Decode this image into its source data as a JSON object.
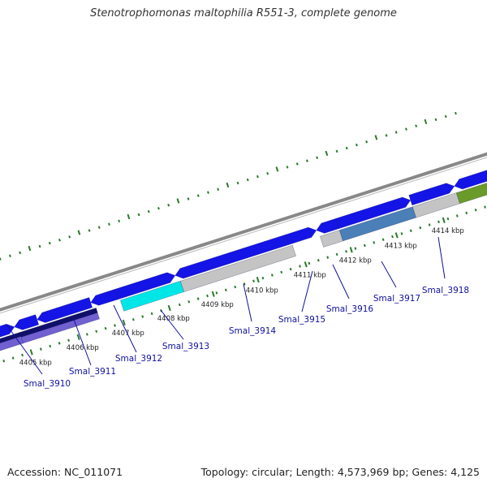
{
  "title": "Stenotrophomonas maltophilia R551-3, complete genome",
  "footer": {
    "accession": "Accession: NC_011071",
    "summary": "Topology: circular; Length: 4,573,969 bp; Genes: 4,125"
  },
  "colors": {
    "gene_forward": "#1414e6",
    "gene_highlight": "#00e6e6",
    "gene_reverse_band": "#7060d0",
    "gene_dark": "#10106a",
    "gene_gray": "#c4c4c4",
    "gene_steel": "#4a7fb8",
    "gene_olive": "#6a9a2a",
    "backbone": "#888888",
    "ticks": "#2a7a2a",
    "gene_label": "#1010a0"
  },
  "kbp_labels": [
    "4405 kbp",
    "4406 kbp",
    "4407 kbp",
    "4408 kbp",
    "4409 kbp",
    "4410 kbp",
    "4411 kbp",
    "4412 kbp",
    "4413 kbp",
    "4414 kbp"
  ],
  "genes": [
    {
      "id": "Smal_3910"
    },
    {
      "id": "Smal_3911"
    },
    {
      "id": "Smal_3912"
    },
    {
      "id": "Smal_3913"
    },
    {
      "id": "Smal_3914"
    },
    {
      "id": "Smal_3915"
    },
    {
      "id": "Smal_3916"
    },
    {
      "id": "Smal_3917"
    },
    {
      "id": "Smal_3918"
    }
  ]
}
